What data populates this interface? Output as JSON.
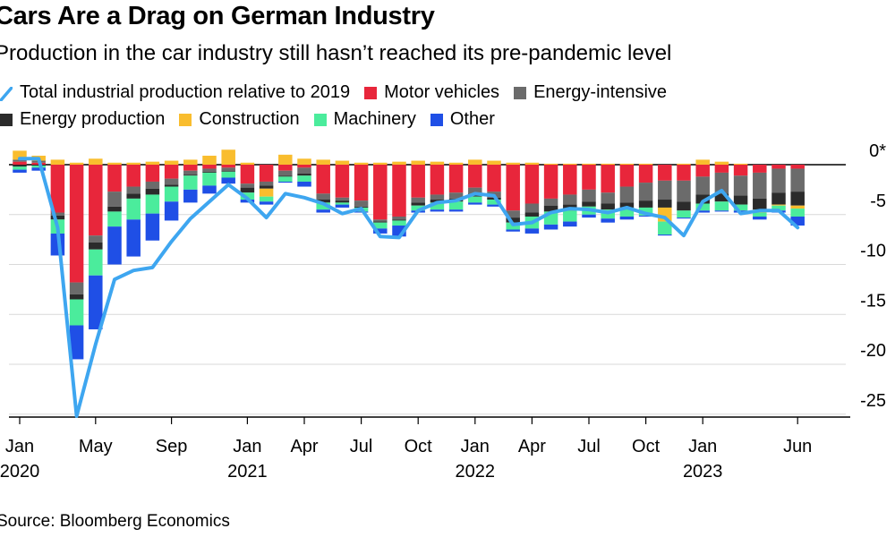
{
  "title": "Cars Are a Drag on German Industry",
  "subtitle": "Production in the car industry still hasn’t reached its pre-pandemic level",
  "source": "Source: Bloomberg Economics",
  "legend": [
    {
      "name": "Total industrial production relative to 2019",
      "kind": "line",
      "color": "#3ea6f0"
    },
    {
      "name": "Motor vehicles",
      "kind": "bar",
      "color": "#e8263b"
    },
    {
      "name": "Energy-intensive",
      "kind": "bar",
      "color": "#6b6b6b"
    },
    {
      "name": "Energy production",
      "kind": "bar",
      "color": "#2b2b2b"
    },
    {
      "name": "Construction",
      "kind": "bar",
      "color": "#f9bd2e"
    },
    {
      "name": "Machinery",
      "kind": "bar",
      "color": "#4bec9c"
    },
    {
      "name": "Other",
      "kind": "bar",
      "color": "#1f4fe6"
    }
  ],
  "chart_data": {
    "type": "bar",
    "subtype": "stacked bar with line overlay",
    "title": "Cars Are a Drag on German Industry",
    "subtitle": "Production in the car industry still hasn’t reached its pre-pandemic level",
    "ylim": [
      -25.5,
      2
    ],
    "yticks": [
      0,
      -5,
      -10,
      -15,
      -20,
      -25
    ],
    "ytick_labels": [
      "0*",
      "-5",
      "-10",
      "-15",
      "-20",
      "-25"
    ],
    "y_axis_side": "right",
    "grid": true,
    "legend_placement": "top",
    "x_tick_labels": [
      {
        "index": 0,
        "month": "Jan",
        "year": "2020"
      },
      {
        "index": 4,
        "month": "May",
        "year": ""
      },
      {
        "index": 8,
        "month": "Sep",
        "year": ""
      },
      {
        "index": 12,
        "month": "Jan",
        "year": "2021"
      },
      {
        "index": 15,
        "month": "Apr",
        "year": ""
      },
      {
        "index": 18,
        "month": "Jul",
        "year": ""
      },
      {
        "index": 21,
        "month": "Oct",
        "year": ""
      },
      {
        "index": 24,
        "month": "Jan",
        "year": "2022"
      },
      {
        "index": 27,
        "month": "Apr",
        "year": ""
      },
      {
        "index": 30,
        "month": "Jul",
        "year": ""
      },
      {
        "index": 33,
        "month": "Oct",
        "year": ""
      },
      {
        "index": 36,
        "month": "Jan",
        "year": "2023"
      },
      {
        "index": 41,
        "month": "Jun",
        "year": ""
      }
    ],
    "x": [
      "2020-01",
      "2020-02",
      "2020-03",
      "2020-04",
      "2020-05",
      "2020-06",
      "2020-07",
      "2020-08",
      "2020-09",
      "2020-10",
      "2020-11",
      "2020-12",
      "2021-01",
      "2021-02",
      "2021-03",
      "2021-04",
      "2021-05",
      "2021-06",
      "2021-07",
      "2021-08",
      "2021-09",
      "2021-10",
      "2021-11",
      "2021-12",
      "2022-01",
      "2022-02",
      "2022-03",
      "2022-04",
      "2022-05",
      "2022-06",
      "2022-07",
      "2022-08",
      "2022-09",
      "2022-10",
      "2022-11",
      "2022-12",
      "2023-01",
      "2023-02",
      "2023-03",
      "2023-04",
      "2023-05",
      "2023-06"
    ],
    "series": [
      {
        "name": "Motor vehicles",
        "values": [
          0.3,
          0.2,
          -4.8,
          -11.8,
          -7.1,
          -2.7,
          -2.2,
          -1.7,
          -1.4,
          -0.6,
          -0.4,
          -0.3,
          -1.9,
          -1.7,
          -0.6,
          -0.3,
          -2.9,
          -3.3,
          -3.6,
          -5.5,
          -5.2,
          -3.3,
          -3.0,
          -2.8,
          -2.3,
          -2.7,
          -4.6,
          -3.9,
          -3.4,
          -3.0,
          -2.5,
          -2.8,
          -2.2,
          -1.8,
          -1.6,
          -1.6,
          -1.2,
          -0.8,
          -1.1,
          -0.8,
          -0.4,
          -0.4
        ]
      },
      {
        "name": "Energy-intensive",
        "values": [
          0.2,
          0.2,
          -0.3,
          -1.2,
          -0.7,
          -1.5,
          -0.7,
          -0.7,
          -0.6,
          -0.4,
          -0.3,
          -0.3,
          -0.4,
          -0.4,
          -0.5,
          -0.6,
          -0.6,
          -0.3,
          -0.6,
          -0.2,
          -0.3,
          -0.5,
          -0.5,
          -0.6,
          -0.6,
          -0.6,
          -0.7,
          -0.9,
          -0.7,
          -1.0,
          -1.2,
          -1.1,
          -1.6,
          -1.8,
          -1.9,
          -2.1,
          -1.8,
          -2.1,
          -2.0,
          -2.6,
          -2.4,
          -2.3
        ]
      },
      {
        "name": "Energy production",
        "values": [
          -0.2,
          -0.1,
          -0.4,
          -0.5,
          -0.7,
          -0.5,
          -0.5,
          -0.6,
          -0.2,
          -0.1,
          -0.1,
          -0.1,
          -0.5,
          -0.3,
          -0.1,
          -0.2,
          -0.3,
          -0.2,
          -0.1,
          -0.1,
          -0.1,
          -0.3,
          -0.3,
          -0.3,
          -0.3,
          -0.2,
          -0.5,
          -0.4,
          -0.6,
          -0.6,
          -0.5,
          -0.6,
          -0.5,
          -0.7,
          -0.8,
          -0.9,
          -0.9,
          -0.8,
          -0.9,
          -1.1,
          -1.2,
          -1.4
        ]
      },
      {
        "name": "Construction",
        "values": [
          0.9,
          0.5,
          0.5,
          0.2,
          0.6,
          0.2,
          0.2,
          0.3,
          0.4,
          0.5,
          0.9,
          1.5,
          0.2,
          -0.8,
          1.0,
          0.6,
          0.5,
          0.4,
          0.2,
          0.2,
          0.3,
          0.4,
          0.3,
          0.2,
          0.5,
          0.4,
          0.2,
          0.2,
          0.1,
          0.1,
          0.1,
          0.1,
          0.1,
          0.1,
          -1.4,
          0.1,
          0.5,
          0.3,
          0.1,
          -0.3,
          -0.1,
          -0.3
        ]
      },
      {
        "name": "Machinery",
        "values": [
          -0.3,
          -0.2,
          -1.4,
          -2.6,
          -2.6,
          -1.5,
          -2.1,
          -1.9,
          -1.5,
          -1.4,
          -1.3,
          -0.6,
          -0.7,
          -0.5,
          -0.5,
          -0.6,
          -0.7,
          -0.2,
          -0.4,
          -0.6,
          -0.5,
          -0.5,
          -0.7,
          -0.8,
          -0.6,
          -0.5,
          -0.7,
          -1.2,
          -1.3,
          -1.1,
          -0.8,
          -0.9,
          -0.9,
          -0.8,
          -1.3,
          -0.7,
          -0.7,
          -0.9,
          -0.6,
          -0.4,
          -0.5,
          -0.8
        ]
      },
      {
        "name": "Other",
        "values": [
          -0.3,
          -0.3,
          -2.2,
          -3.4,
          -5.4,
          -3.8,
          -3.7,
          -2.7,
          -1.9,
          -1.3,
          -0.8,
          -0.6,
          -0.3,
          -0.3,
          -0.1,
          -0.5,
          -0.3,
          -0.3,
          -0.1,
          -0.5,
          -1.1,
          -0.2,
          -0.2,
          -0.2,
          -0.2,
          -0.2,
          -0.2,
          -0.5,
          -0.5,
          -0.5,
          -0.3,
          -0.4,
          -0.3,
          -0.1,
          -0.1,
          -0.1,
          -0.2,
          -0.1,
          -0.2,
          -0.3,
          -0.2,
          -0.9
        ]
      },
      {
        "name": "Total industrial production relative to 2019",
        "kind": "line",
        "values": [
          0.6,
          0.6,
          -6.3,
          -25.2,
          -18.0,
          -11.5,
          -10.6,
          -10.3,
          -7.7,
          -5.4,
          -3.7,
          -2.0,
          -3.4,
          -5.3,
          -2.9,
          -3.3,
          -3.9,
          -4.9,
          -4.4,
          -7.2,
          -7.3,
          -4.6,
          -3.8,
          -3.6,
          -2.9,
          -3.1,
          -6.0,
          -5.8,
          -4.8,
          -4.4,
          -4.5,
          -4.8,
          -4.3,
          -4.9,
          -5.3,
          -7.1,
          -3.7,
          -2.6,
          -4.9,
          -4.6,
          -4.6,
          -6.3
        ]
      }
    ]
  }
}
